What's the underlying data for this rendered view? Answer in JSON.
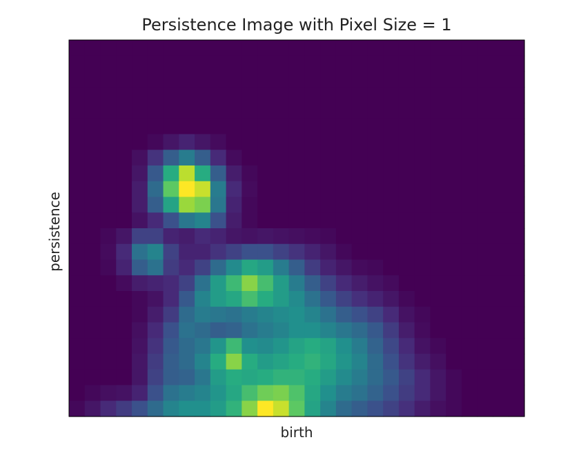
{
  "chart_data": {
    "type": "heatmap",
    "title": "Persistence Image with Pixel Size = 1",
    "xlabel": "birth",
    "ylabel": "persistence",
    "colormap": "viridis",
    "ticks_visible": false,
    "grid": false,
    "legend": "none",
    "vmin": 0,
    "vmax": 1,
    "n_rows": 24,
    "n_cols": 29,
    "row_order": "top-to-bottom",
    "z": [
      [
        0,
        0,
        0,
        0,
        0,
        0,
        0,
        0,
        0,
        0,
        0,
        0,
        0,
        0,
        0,
        0,
        0,
        0,
        0,
        0,
        0,
        0,
        0,
        0,
        0,
        0,
        0,
        0,
        0
      ],
      [
        0,
        0,
        0,
        0,
        0,
        0,
        0,
        0,
        0,
        0,
        0,
        0,
        0,
        0,
        0,
        0,
        0,
        0,
        0,
        0,
        0,
        0,
        0,
        0,
        0,
        0,
        0,
        0,
        0
      ],
      [
        0,
        0,
        0,
        0,
        0,
        0,
        0,
        0,
        0,
        0,
        0,
        0,
        0,
        0,
        0,
        0,
        0,
        0,
        0,
        0,
        0,
        0,
        0,
        0,
        0,
        0,
        0,
        0,
        0
      ],
      [
        0,
        0,
        0,
        0,
        0,
        0,
        0,
        0,
        0,
        0,
        0,
        0,
        0,
        0,
        0,
        0,
        0,
        0,
        0,
        0,
        0,
        0,
        0,
        0,
        0,
        0,
        0,
        0,
        0
      ],
      [
        0,
        0,
        0,
        0,
        0,
        0,
        0,
        0,
        0,
        0,
        0,
        0,
        0,
        0,
        0,
        0,
        0,
        0,
        0,
        0,
        0,
        0,
        0,
        0,
        0,
        0,
        0,
        0,
        0
      ],
      [
        0,
        0,
        0,
        0,
        0,
        0,
        0,
        0,
        0,
        0,
        0,
        0,
        0,
        0,
        0,
        0,
        0,
        0,
        0,
        0,
        0,
        0,
        0,
        0,
        0,
        0,
        0,
        0,
        0
      ],
      [
        0,
        0,
        0,
        0,
        0,
        0.02,
        0.06,
        0.1,
        0.06,
        0.03,
        0,
        0,
        0,
        0,
        0,
        0,
        0,
        0,
        0,
        0,
        0,
        0,
        0,
        0,
        0,
        0,
        0,
        0,
        0
      ],
      [
        0,
        0,
        0,
        0,
        0.04,
        0.15,
        0.3,
        0.42,
        0.3,
        0.12,
        0.03,
        0,
        0,
        0,
        0,
        0,
        0,
        0,
        0,
        0,
        0,
        0,
        0,
        0,
        0,
        0,
        0,
        0,
        0
      ],
      [
        0,
        0,
        0,
        0,
        0.06,
        0.28,
        0.62,
        0.9,
        0.62,
        0.3,
        0.08,
        0.02,
        0,
        0,
        0,
        0,
        0,
        0,
        0,
        0,
        0,
        0,
        0,
        0,
        0,
        0,
        0,
        0,
        0
      ],
      [
        0,
        0,
        0,
        0,
        0.08,
        0.35,
        0.75,
        1.0,
        0.92,
        0.42,
        0.12,
        0.03,
        0,
        0,
        0,
        0,
        0,
        0,
        0,
        0,
        0,
        0,
        0,
        0,
        0,
        0,
        0,
        0,
        0
      ],
      [
        0,
        0,
        0,
        0,
        0.08,
        0.3,
        0.58,
        0.85,
        0.8,
        0.4,
        0.1,
        0.02,
        0,
        0,
        0,
        0,
        0,
        0,
        0,
        0,
        0,
        0,
        0,
        0,
        0,
        0,
        0,
        0,
        0
      ],
      [
        0,
        0,
        0,
        0,
        0.05,
        0.12,
        0.25,
        0.4,
        0.45,
        0.25,
        0.08,
        0.02,
        0,
        0,
        0,
        0,
        0,
        0,
        0,
        0,
        0,
        0,
        0,
        0,
        0,
        0,
        0,
        0,
        0
      ],
      [
        0,
        0,
        0.02,
        0.06,
        0.2,
        0.2,
        0.1,
        0.08,
        0.12,
        0.1,
        0.06,
        0.05,
        0.06,
        0.05,
        0.04,
        0.03,
        0.02,
        0,
        0,
        0,
        0,
        0,
        0,
        0,
        0,
        0,
        0,
        0,
        0
      ],
      [
        0,
        0,
        0.03,
        0.12,
        0.38,
        0.45,
        0.2,
        0.1,
        0.1,
        0.15,
        0.2,
        0.25,
        0.25,
        0.2,
        0.15,
        0.1,
        0.06,
        0.02,
        0,
        0,
        0,
        0,
        0,
        0,
        0,
        0,
        0,
        0,
        0
      ],
      [
        0,
        0,
        0.02,
        0.1,
        0.3,
        0.38,
        0.18,
        0.12,
        0.2,
        0.35,
        0.48,
        0.6,
        0.55,
        0.42,
        0.3,
        0.18,
        0.1,
        0.06,
        0.03,
        0.02,
        0,
        0,
        0,
        0,
        0,
        0,
        0,
        0,
        0
      ],
      [
        0,
        0,
        0,
        0.03,
        0.08,
        0.1,
        0.12,
        0.2,
        0.38,
        0.55,
        0.68,
        0.82,
        0.7,
        0.55,
        0.42,
        0.3,
        0.2,
        0.12,
        0.08,
        0.05,
        0.03,
        0,
        0,
        0,
        0,
        0,
        0,
        0,
        0
      ],
      [
        0,
        0,
        0,
        0,
        0.02,
        0.05,
        0.12,
        0.28,
        0.45,
        0.55,
        0.6,
        0.7,
        0.62,
        0.55,
        0.48,
        0.38,
        0.28,
        0.2,
        0.14,
        0.1,
        0.06,
        0.02,
        0,
        0,
        0,
        0,
        0,
        0,
        0
      ],
      [
        0,
        0,
        0,
        0,
        0.02,
        0.08,
        0.18,
        0.35,
        0.42,
        0.4,
        0.38,
        0.42,
        0.45,
        0.48,
        0.5,
        0.45,
        0.38,
        0.3,
        0.25,
        0.2,
        0.12,
        0.05,
        0.02,
        0,
        0,
        0,
        0,
        0,
        0
      ],
      [
        0,
        0,
        0,
        0,
        0.04,
        0.12,
        0.25,
        0.38,
        0.35,
        0.3,
        0.32,
        0.38,
        0.42,
        0.45,
        0.5,
        0.5,
        0.45,
        0.4,
        0.35,
        0.28,
        0.18,
        0.08,
        0.03,
        0,
        0,
        0,
        0,
        0,
        0
      ],
      [
        0,
        0,
        0,
        0,
        0.05,
        0.15,
        0.28,
        0.35,
        0.4,
        0.52,
        0.68,
        0.5,
        0.48,
        0.52,
        0.58,
        0.62,
        0.58,
        0.5,
        0.42,
        0.32,
        0.22,
        0.12,
        0.05,
        0.02,
        0,
        0,
        0,
        0,
        0
      ],
      [
        0,
        0,
        0,
        0,
        0.06,
        0.18,
        0.3,
        0.35,
        0.45,
        0.62,
        0.82,
        0.62,
        0.55,
        0.58,
        0.62,
        0.65,
        0.6,
        0.52,
        0.45,
        0.35,
        0.25,
        0.15,
        0.08,
        0.04,
        0,
        0,
        0,
        0,
        0
      ],
      [
        0,
        0,
        0,
        0,
        0.06,
        0.2,
        0.3,
        0.32,
        0.4,
        0.55,
        0.62,
        0.6,
        0.62,
        0.65,
        0.65,
        0.62,
        0.55,
        0.48,
        0.42,
        0.35,
        0.28,
        0.2,
        0.12,
        0.06,
        0.02,
        0,
        0,
        0,
        0
      ],
      [
        0,
        0.02,
        0.04,
        0.05,
        0.1,
        0.25,
        0.38,
        0.42,
        0.45,
        0.52,
        0.6,
        0.7,
        0.78,
        0.8,
        0.72,
        0.6,
        0.5,
        0.42,
        0.38,
        0.32,
        0.25,
        0.18,
        0.12,
        0.06,
        0.02,
        0,
        0,
        0,
        0
      ],
      [
        0.02,
        0.06,
        0.12,
        0.18,
        0.25,
        0.35,
        0.45,
        0.5,
        0.5,
        0.55,
        0.65,
        0.82,
        1.0,
        0.92,
        0.75,
        0.58,
        0.45,
        0.35,
        0.3,
        0.25,
        0.2,
        0.14,
        0.08,
        0.04,
        0.02,
        0,
        0,
        0,
        0
      ]
    ]
  }
}
